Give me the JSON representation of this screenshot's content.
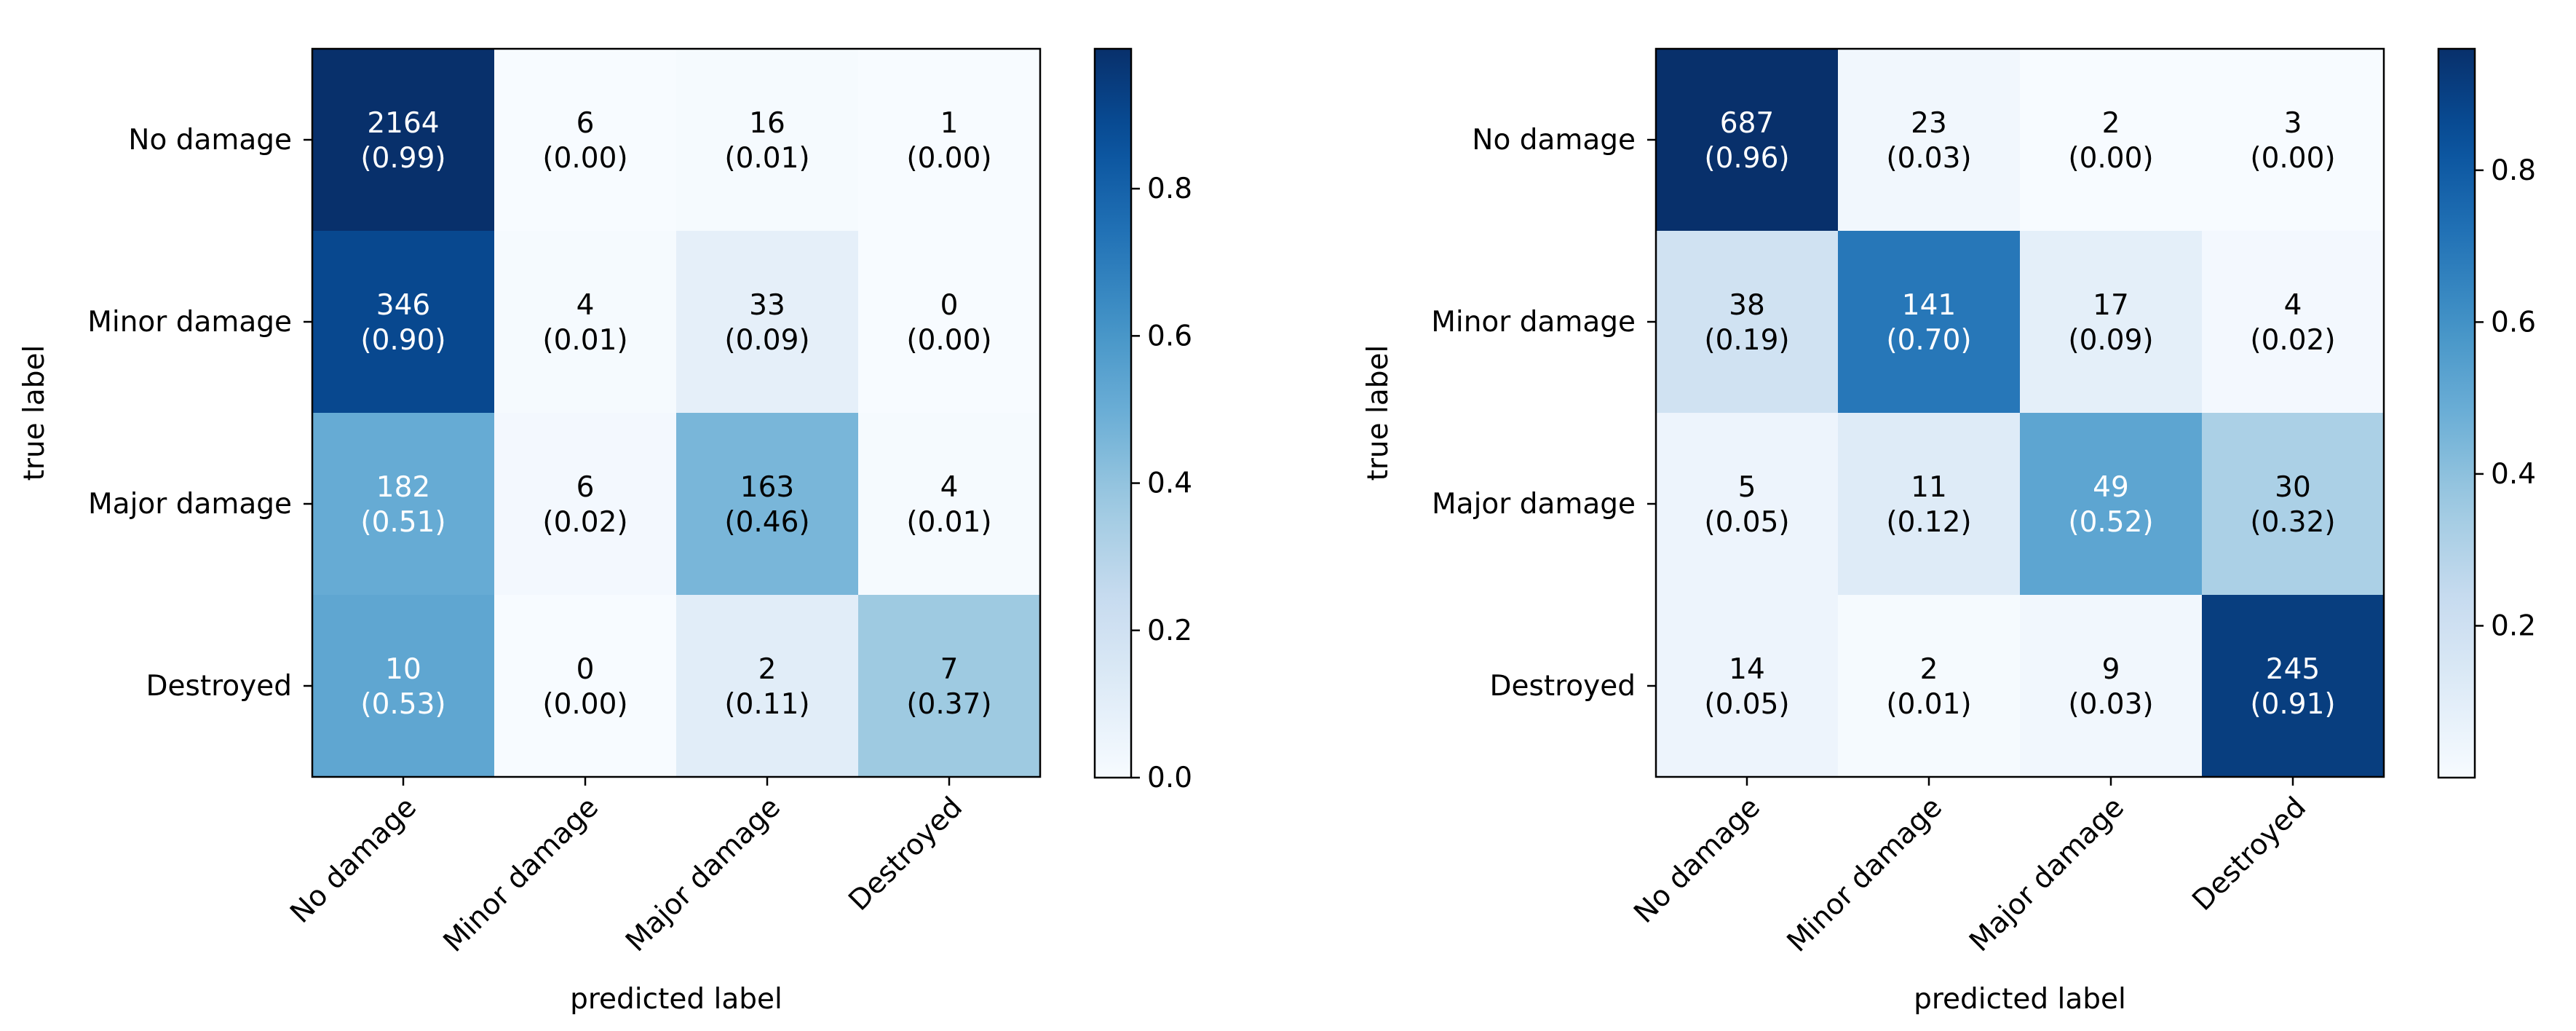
{
  "chart_data": [
    {
      "type": "heatmap",
      "xlabel": "predicted label",
      "ylabel": "true label",
      "row_labels": [
        "No damage",
        "Minor damage",
        "Major damage",
        "Destroyed"
      ],
      "col_labels": [
        "No damage",
        "Minor damage",
        "Major damage",
        "Destroyed"
      ],
      "counts": [
        [
          2164,
          6,
          16,
          1
        ],
        [
          346,
          4,
          33,
          0
        ],
        [
          182,
          6,
          163,
          4
        ],
        [
          10,
          0,
          2,
          7
        ]
      ],
      "normalized": [
        [
          "0.99",
          "0.00",
          "0.01",
          "0.00"
        ],
        [
          "0.90",
          "0.01",
          "0.09",
          "0.00"
        ],
        [
          "0.51",
          "0.02",
          "0.46",
          "0.01"
        ],
        [
          "0.53",
          "0.00",
          "0.11",
          "0.37"
        ]
      ],
      "colorbar": {
        "min": 0.0,
        "max": 0.99,
        "ticks": [
          0.0,
          0.2,
          0.4,
          0.6,
          0.8
        ],
        "tick_labels": [
          "0.0",
          "0.2",
          "0.4",
          "0.6",
          "0.8"
        ]
      },
      "colormap": "Blues",
      "text_threshold": 0.495
    },
    {
      "type": "heatmap",
      "xlabel": "predicted label",
      "ylabel": "true label",
      "row_labels": [
        "No damage",
        "Minor damage",
        "Major damage",
        "Destroyed"
      ],
      "col_labels": [
        "No damage",
        "Minor damage",
        "Major damage",
        "Destroyed"
      ],
      "counts": [
        [
          687,
          23,
          2,
          3
        ],
        [
          38,
          141,
          17,
          4
        ],
        [
          5,
          11,
          49,
          30
        ],
        [
          14,
          2,
          9,
          245
        ]
      ],
      "normalized": [
        [
          "0.96",
          "0.03",
          "0.00",
          "0.00"
        ],
        [
          "0.19",
          "0.70",
          "0.09",
          "0.02"
        ],
        [
          "0.05",
          "0.12",
          "0.52",
          "0.32"
        ],
        [
          "0.05",
          "0.01",
          "0.03",
          "0.91"
        ]
      ],
      "colorbar": {
        "min": 0.0,
        "max": 0.96,
        "ticks": [
          0.2,
          0.4,
          0.6,
          0.8
        ],
        "tick_labels": [
          "0.2",
          "0.4",
          "0.6",
          "0.8"
        ]
      },
      "colormap": "Blues",
      "text_threshold": 0.48
    }
  ]
}
